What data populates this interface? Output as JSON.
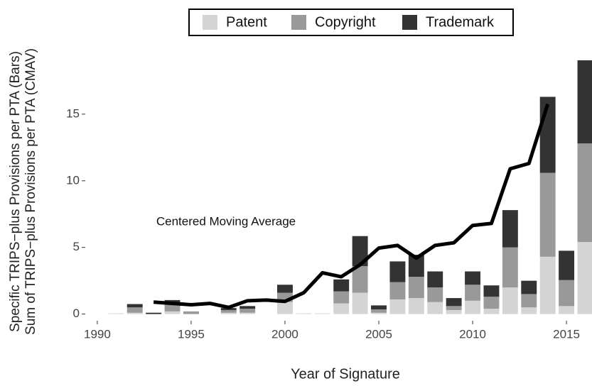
{
  "chart_data": {
    "type": "bar",
    "stacked": true,
    "xlabel": "Year of Signature",
    "ylabel": [
      "Specific TRIPS−plus Provisions per PTA  (Bars)",
      "Sum of TRIPS−plus Provisions per PTA (CMAV)"
    ],
    "annotation": "Centered Moving Average",
    "x": [
      1991,
      1992,
      1993,
      1994,
      1995,
      1996,
      1997,
      1998,
      1999,
      2000,
      2001,
      2002,
      2003,
      2004,
      2005,
      2006,
      2007,
      2008,
      2009,
      2010,
      2011,
      2012,
      2013,
      2014,
      2015,
      2016
    ],
    "series": [
      {
        "name": "Patent",
        "color": "#d4d4d4",
        "values": [
          0.05,
          0.1,
          0,
          0.2,
          0,
          0,
          0.1,
          0.1,
          0,
          0.9,
          0.05,
          0.05,
          0.8,
          1.6,
          0.1,
          1.1,
          1.2,
          0.9,
          0.3,
          1.0,
          0.4,
          2.0,
          0.5,
          4.3,
          0.6,
          5.4
        ]
      },
      {
        "name": "Copyright",
        "color": "#999999",
        "values": [
          0,
          0.4,
          0,
          0.5,
          0.2,
          0,
          0.2,
          0.3,
          0,
          0.7,
          0,
          0,
          0.9,
          2.0,
          0.25,
          1.3,
          1.6,
          1.1,
          0.3,
          1.2,
          0.9,
          3.0,
          1.0,
          6.3,
          1.95,
          7.4
        ]
      },
      {
        "name": "Trademark",
        "color": "#333333",
        "values": [
          0,
          0.25,
          0.1,
          0.35,
          0,
          0,
          0.15,
          0.2,
          0,
          0.6,
          0,
          0,
          0.9,
          2.25,
          0.3,
          1.55,
          1.65,
          1.2,
          0.6,
          1.0,
          0.85,
          2.8,
          1.0,
          5.7,
          2.2,
          6.25
        ]
      }
    ],
    "line": {
      "color": "#000000",
      "x": [
        1993,
        1994,
        1995,
        1996,
        1997,
        1998,
        1999,
        2000,
        2001,
        2002,
        2003,
        2004,
        2005,
        2006,
        2007,
        2008,
        2009,
        2010,
        2011,
        2012,
        2013,
        2014
      ],
      "values": [
        0.9,
        0.8,
        0.7,
        0.8,
        0.5,
        1.0,
        1.05,
        0.95,
        1.6,
        3.1,
        2.8,
        3.7,
        4.95,
        5.15,
        4.2,
        5.15,
        5.35,
        6.65,
        6.8,
        10.9,
        11.3,
        15.75
      ]
    },
    "xlim": [
      1989.36,
      2016.36
    ],
    "xticks": [
      1990,
      1995,
      2000,
      2005,
      2010,
      2015
    ],
    "ylim": [
      -0.5,
      19.04
    ],
    "yticks": [
      0,
      5,
      10,
      15
    ],
    "legend": "top"
  }
}
